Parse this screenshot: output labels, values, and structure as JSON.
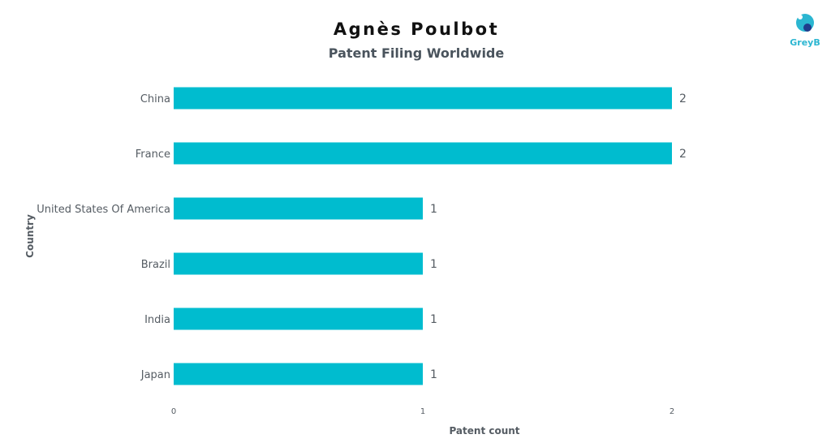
{
  "chart_data": {
    "type": "bar",
    "orientation": "horizontal",
    "title": "Agnès Poulbot",
    "subtitle": "Patent Filing Worldwide",
    "categories": [
      "China",
      "France",
      "United States Of America",
      "Brazil",
      "India",
      "Japan"
    ],
    "values": [
      2,
      2,
      1,
      1,
      1,
      1
    ],
    "data_labels": [
      "2",
      "2",
      "1",
      "1",
      "1",
      "1"
    ],
    "xlabel": "Patent count",
    "ylabel": "Country",
    "xlim": [
      0,
      2
    ],
    "x_ticks": [
      "0",
      "1",
      "2"
    ],
    "grid": false,
    "bar_color": "#00bccf"
  },
  "brand": {
    "logo_text": "GreyB",
    "logo_color": "#2bb6d1",
    "logo_accent": "#1f3c8c"
  }
}
